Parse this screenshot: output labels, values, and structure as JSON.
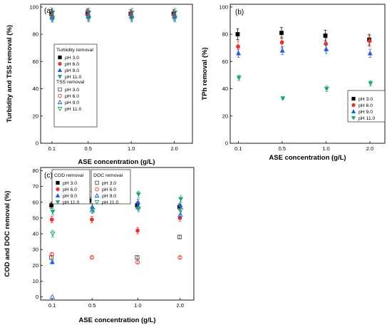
{
  "chart_data": [
    {
      "panel": "(a)",
      "type": "scatter",
      "xlabel": "ASE concentration (g/L)",
      "ylabel": "Turbidity and TSS removal (%)",
      "categories": [
        "0.1",
        "0.5",
        "1.0",
        "2.0"
      ],
      "yticks": [
        "0",
        "20",
        "40",
        "60",
        "80",
        "100"
      ],
      "ylim": [
        0,
        102
      ],
      "legend_groups": [
        {
          "title": "Turbidity removal",
          "items": [
            "pH 3.0",
            "pH 6.0",
            "pH 9.0",
            "pH 11.0"
          ]
        },
        {
          "title": "TSS removal",
          "items": [
            "pH 3.0",
            "pH 6.0",
            "pH 9.0",
            "pH 11.0"
          ]
        }
      ],
      "series": [
        {
          "group": "Turbidity removal",
          "name": "pH 3.0",
          "marker": "square-filled",
          "color": "#000000",
          "values": [
            95,
            95,
            95,
            95
          ],
          "err": [
            3,
            3,
            3,
            3
          ]
        },
        {
          "group": "Turbidity removal",
          "name": "pH 6.0",
          "marker": "circle-filled",
          "color": "#e8322a",
          "values": [
            94,
            94,
            94,
            94
          ],
          "err": [
            3,
            3,
            3,
            3
          ]
        },
        {
          "group": "Turbidity removal",
          "name": "pH 9.0",
          "marker": "triangle-up-filled",
          "color": "#1f5bd6",
          "values": [
            92,
            93,
            93,
            93
          ],
          "err": [
            3,
            3,
            3,
            3
          ]
        },
        {
          "group": "Turbidity removal",
          "name": "pH 11.0",
          "marker": "triangle-down-filled",
          "color": "#1aa37a",
          "values": [
            96,
            96,
            96,
            96
          ],
          "err": [
            3,
            3,
            3,
            3
          ]
        },
        {
          "group": "TSS removal",
          "name": "pH 3.0",
          "marker": "square-open",
          "color": "#555555",
          "values": [
            95,
            96,
            95,
            95
          ],
          "err": [
            3,
            3,
            3,
            3
          ]
        },
        {
          "group": "TSS removal",
          "name": "pH 6.0",
          "marker": "circle-open",
          "color": "#e8322a",
          "values": [
            94,
            94,
            95,
            94
          ],
          "err": [
            3,
            3,
            3,
            3
          ]
        },
        {
          "group": "TSS removal",
          "name": "pH 9.0",
          "marker": "triangle-up-open",
          "color": "#1f5bd6",
          "values": [
            93,
            93,
            93,
            93
          ],
          "err": [
            3,
            3,
            3,
            3
          ]
        },
        {
          "group": "TSS removal",
          "name": "pH 11.0",
          "marker": "triangle-down-open",
          "color": "#1aa37a",
          "values": [
            92,
            92,
            92,
            92
          ],
          "err": [
            3,
            3,
            3,
            3
          ]
        }
      ]
    },
    {
      "panel": "(b)",
      "type": "scatter",
      "xlabel": "ASE concentration (g/L)",
      "ylabel": "TPh removal (%)",
      "categories": [
        "0.1",
        "0.5",
        "1.0",
        "2.0"
      ],
      "yticks": [
        "0",
        "20",
        "40",
        "60",
        "80",
        "100"
      ],
      "ylim": [
        0,
        102
      ],
      "legend_groups": [
        {
          "title": "",
          "items": [
            "pH 3.0",
            "pH 6.0",
            "pH 9.0",
            "pH 11.0"
          ]
        }
      ],
      "series": [
        {
          "name": "pH 3.0",
          "marker": "square-filled",
          "color": "#000000",
          "values": [
            80,
            81,
            79,
            76
          ],
          "err": [
            4,
            4,
            4,
            4
          ]
        },
        {
          "name": "pH 6.0",
          "marker": "circle-filled",
          "color": "#e8322a",
          "values": [
            71,
            74,
            73,
            75
          ],
          "err": [
            4,
            4,
            4,
            4
          ]
        },
        {
          "name": "pH 9.0",
          "marker": "triangle-up-filled",
          "color": "#1f5bd6",
          "values": [
            66,
            68,
            69,
            66
          ],
          "err": [
            3,
            3,
            3,
            3
          ]
        },
        {
          "name": "pH 11.0",
          "marker": "triangle-down-filled",
          "color": "#1aa37a",
          "values": [
            48,
            33,
            40,
            44
          ],
          "err": [
            2,
            1,
            2,
            2
          ]
        }
      ]
    },
    {
      "panel": "(c)",
      "type": "scatter",
      "xlabel": "ASE concentration (g/L)",
      "ylabel": "COD and DOC removal (%)",
      "categories": [
        "0.1",
        "0.5",
        "1.0",
        "2.0"
      ],
      "yticks": [
        "0",
        "10",
        "20",
        "30",
        "40",
        "50",
        "60",
        "70",
        "80"
      ],
      "ylim": [
        -2,
        82
      ],
      "legend_groups": [
        {
          "title": "COD removal",
          "items": [
            "pH 3.0",
            "pH 6.0",
            "pH 9.0",
            "pH 11.0"
          ]
        },
        {
          "title": "DOC removal",
          "items": [
            "pH 3.0",
            "pH 6.0",
            "pH 9.0",
            "pH 11.0"
          ]
        }
      ],
      "series": [
        {
          "group": "COD removal",
          "name": "pH 3.0",
          "marker": "square-filled",
          "color": "#000000",
          "values": [
            58,
            61,
            58,
            57
          ],
          "err": [
            2,
            2,
            2,
            2
          ]
        },
        {
          "group": "COD removal",
          "name": "pH 6.0",
          "marker": "circle-filled",
          "color": "#e8322a",
          "values": [
            49,
            49,
            42,
            50
          ],
          "err": [
            2,
            2,
            2,
            2
          ]
        },
        {
          "group": "COD removal",
          "name": "pH 9.0",
          "marker": "triangle-up-filled",
          "color": "#1f5bd6",
          "values": [
            22,
            57,
            60,
            58
          ],
          "err": [
            1,
            2,
            2,
            2
          ]
        },
        {
          "group": "COD removal",
          "name": "pH 11.0",
          "marker": "triangle-down-filled",
          "color": "#1aa37a",
          "values": [
            54,
            66,
            65,
            62
          ],
          "err": [
            2,
            2,
            2,
            2
          ]
        },
        {
          "group": "DOC removal",
          "name": "pH 3.0",
          "marker": "square-open",
          "color": "#555555",
          "values": [
            25,
            61,
            25,
            38
          ],
          "err": [
            1,
            2,
            1,
            1
          ]
        },
        {
          "group": "DOC removal",
          "name": "pH 6.0",
          "marker": "circle-open",
          "color": "#e8322a",
          "values": [
            27,
            25,
            22,
            25
          ],
          "err": [
            1,
            1,
            1,
            1
          ]
        },
        {
          "group": "DOC removal",
          "name": "pH 9.0",
          "marker": "triangle-up-open",
          "color": "#1f5bd6",
          "values": [
            0,
            55,
            57,
            52
          ],
          "err": [
            0,
            2,
            2,
            2
          ]
        },
        {
          "group": "DOC removal",
          "name": "pH 11.0",
          "marker": "triangle-down-open",
          "color": "#1aa37a",
          "values": [
            40,
            55,
            56,
            55
          ],
          "err": [
            2,
            2,
            2,
            2
          ]
        }
      ]
    }
  ]
}
